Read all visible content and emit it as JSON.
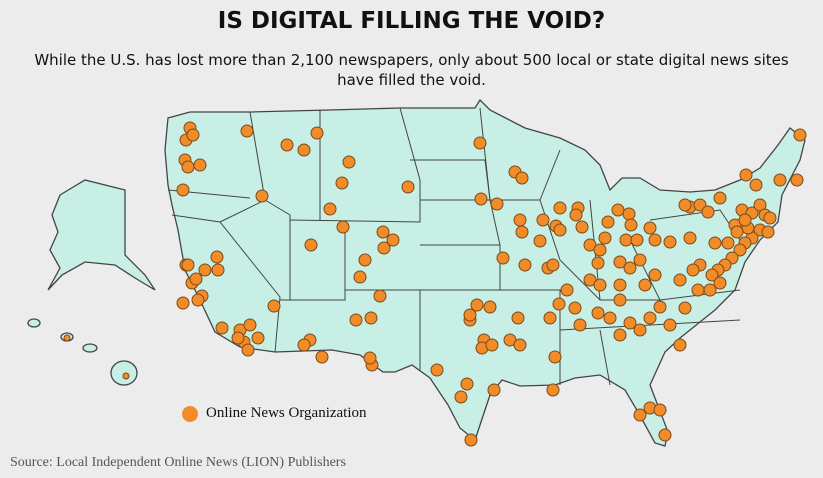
{
  "header": {
    "title": "IS DIGITAL FILLING THE VOID?",
    "subtitle": "While the U.S. has lost more than 2,100 newspapers, only about 500 local or state digital news sites have filled the void."
  },
  "legend": {
    "label": "Online News Organization"
  },
  "footer": {
    "source": "Source: Local Independent Online News (LION) Publishers"
  }
}
